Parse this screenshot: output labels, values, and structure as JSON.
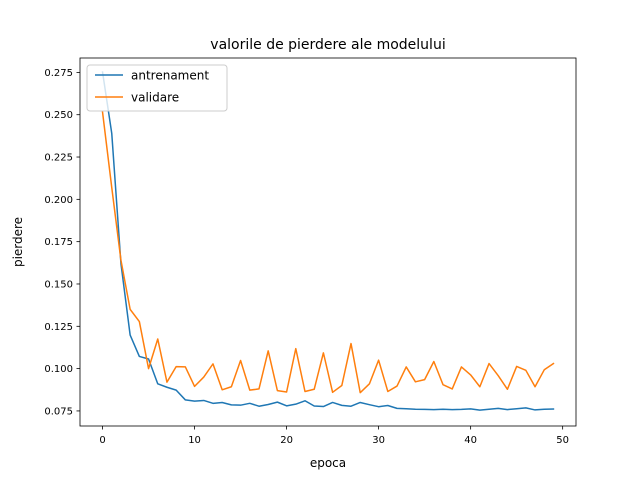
{
  "chart_data": {
    "type": "line",
    "title": "valorile de pierdere ale modelului",
    "xlabel": "epoca",
    "ylabel": "pierdere",
    "xlim": [
      -2.45,
      51.45
    ],
    "ylim": [
      0.0661,
      0.2835
    ],
    "xticks": [
      0,
      10,
      20,
      30,
      40,
      50
    ],
    "yticks": [
      0.075,
      0.1,
      0.125,
      0.15,
      0.175,
      0.2,
      0.225,
      0.25,
      0.275
    ],
    "ytick_labels": [
      "0.075",
      "0.100",
      "0.125",
      "0.150",
      "0.175",
      "0.200",
      "0.225",
      "0.250",
      "0.275"
    ],
    "grid": false,
    "legend_position": "upper-left",
    "series": [
      {
        "name": "antrenament",
        "color": "#1f77b4",
        "values": [
          0.2752,
          0.239,
          0.162,
          0.1198,
          0.1072,
          0.1057,
          0.091,
          0.089,
          0.0873,
          0.0815,
          0.0808,
          0.0812,
          0.0795,
          0.08,
          0.0786,
          0.0784,
          0.0795,
          0.0778,
          0.0788,
          0.0802,
          0.078,
          0.079,
          0.081,
          0.0779,
          0.0776,
          0.08,
          0.0783,
          0.0778,
          0.08,
          0.0787,
          0.0775,
          0.0782,
          0.0765,
          0.0763,
          0.076,
          0.0759,
          0.0758,
          0.076,
          0.0758,
          0.0759,
          0.0762,
          0.0755,
          0.076,
          0.0765,
          0.0758,
          0.0763,
          0.0768,
          0.0756,
          0.076,
          0.0761
        ]
      },
      {
        "name": "validare",
        "color": "#ff7f0e",
        "values": [
          0.2515,
          0.207,
          0.164,
          0.135,
          0.1278,
          0.1,
          0.1175,
          0.092,
          0.1012,
          0.101,
          0.0895,
          0.095,
          0.1028,
          0.0875,
          0.0893,
          0.1048,
          0.0873,
          0.088,
          0.1105,
          0.087,
          0.0862,
          0.1118,
          0.0865,
          0.0878,
          0.1093,
          0.086,
          0.09,
          0.1148,
          0.0858,
          0.091,
          0.105,
          0.0865,
          0.0897,
          0.101,
          0.0922,
          0.0935,
          0.1042,
          0.0905,
          0.088,
          0.101,
          0.0963,
          0.0893,
          0.103,
          0.0958,
          0.0878,
          0.1013,
          0.099,
          0.0893,
          0.0993,
          0.103
        ]
      }
    ]
  }
}
